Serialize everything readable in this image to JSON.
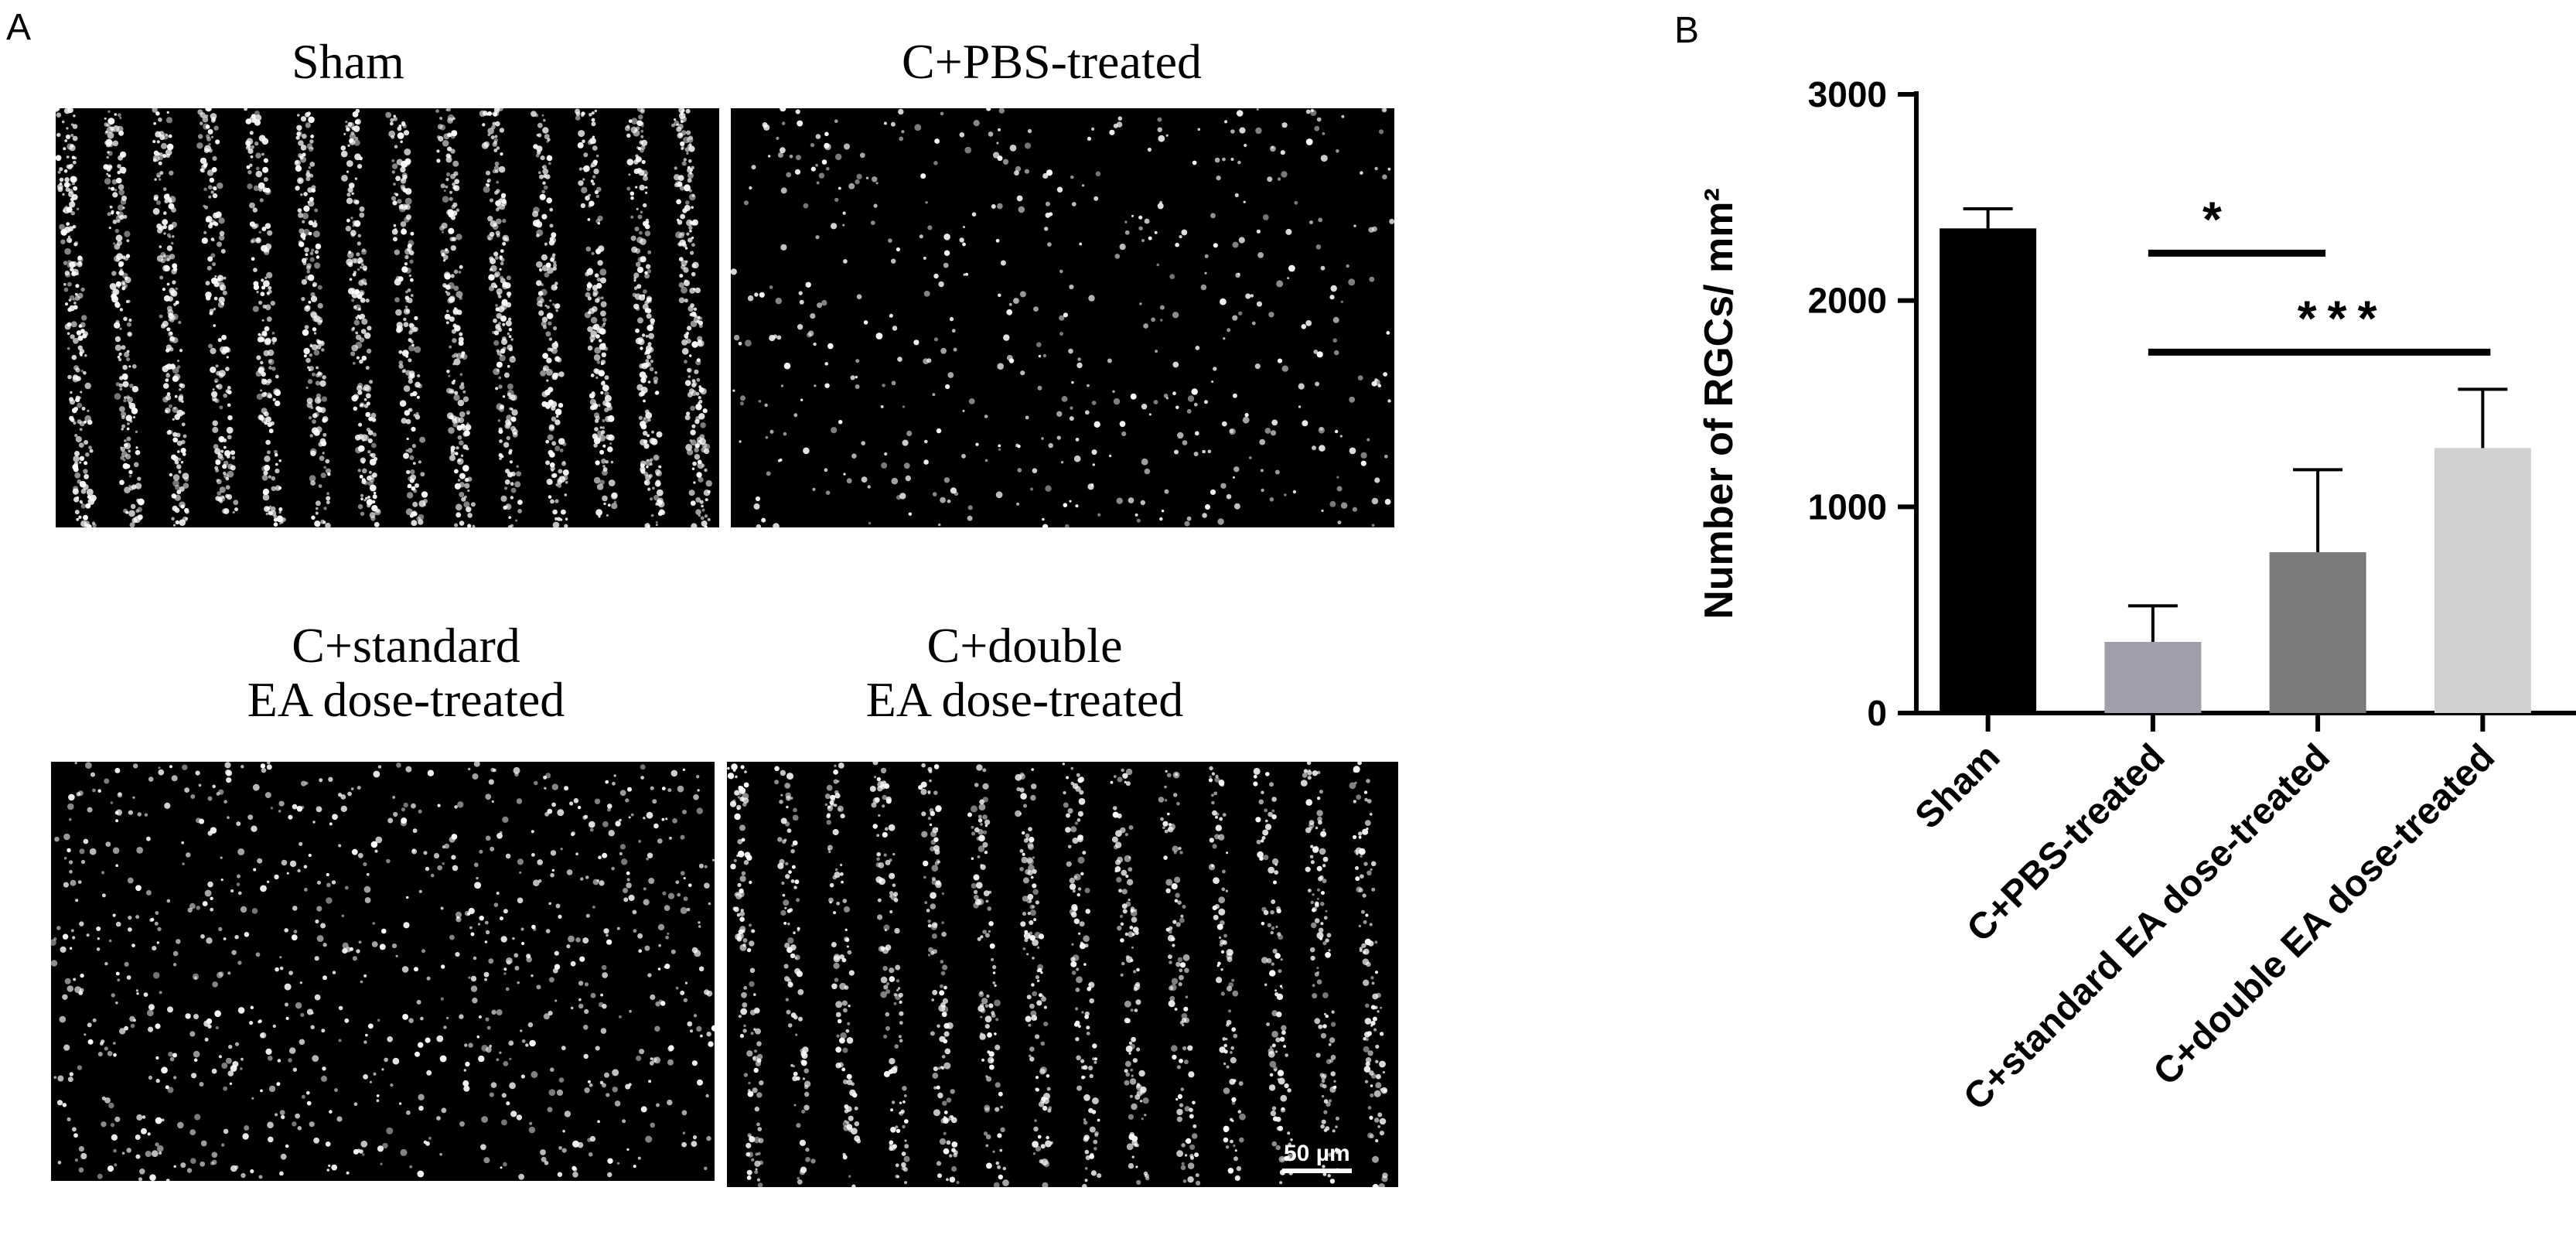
{
  "panels": {
    "a_letter": "A",
    "b_letter": "B"
  },
  "micrographs": {
    "sham": "Sham",
    "pbs": "C+PBS-treated",
    "standard_line1": "C+standard",
    "standard_line2": "EA dose-treated",
    "double_line1": "C+double",
    "double_line2": "EA dose-treated",
    "scale_label": "50 µm",
    "background_color": "#000000",
    "cell_color": "#ffffff"
  },
  "chart_data": {
    "type": "bar",
    "title": "",
    "xlabel": "",
    "ylabel": "Number of RGCs/ mm²",
    "ylim": [
      0,
      3000
    ],
    "yticks": [
      "0",
      "1000",
      "2000",
      "3000"
    ],
    "categories": [
      "Sham",
      "C+PBS-treated",
      "C+standard EA dose-treated",
      "C+double EA dose-treated"
    ],
    "values": [
      2350,
      345,
      780,
      1285
    ],
    "errors": [
      95,
      175,
      400,
      285
    ],
    "colors": [
      "#000000",
      "#a0a0aa",
      "#7a7a7a",
      "#d0d0d0"
    ],
    "significance": [
      {
        "label": "*",
        "from": 1,
        "to": 2
      },
      {
        "label": "***",
        "from": 1,
        "to": 3
      }
    ]
  }
}
